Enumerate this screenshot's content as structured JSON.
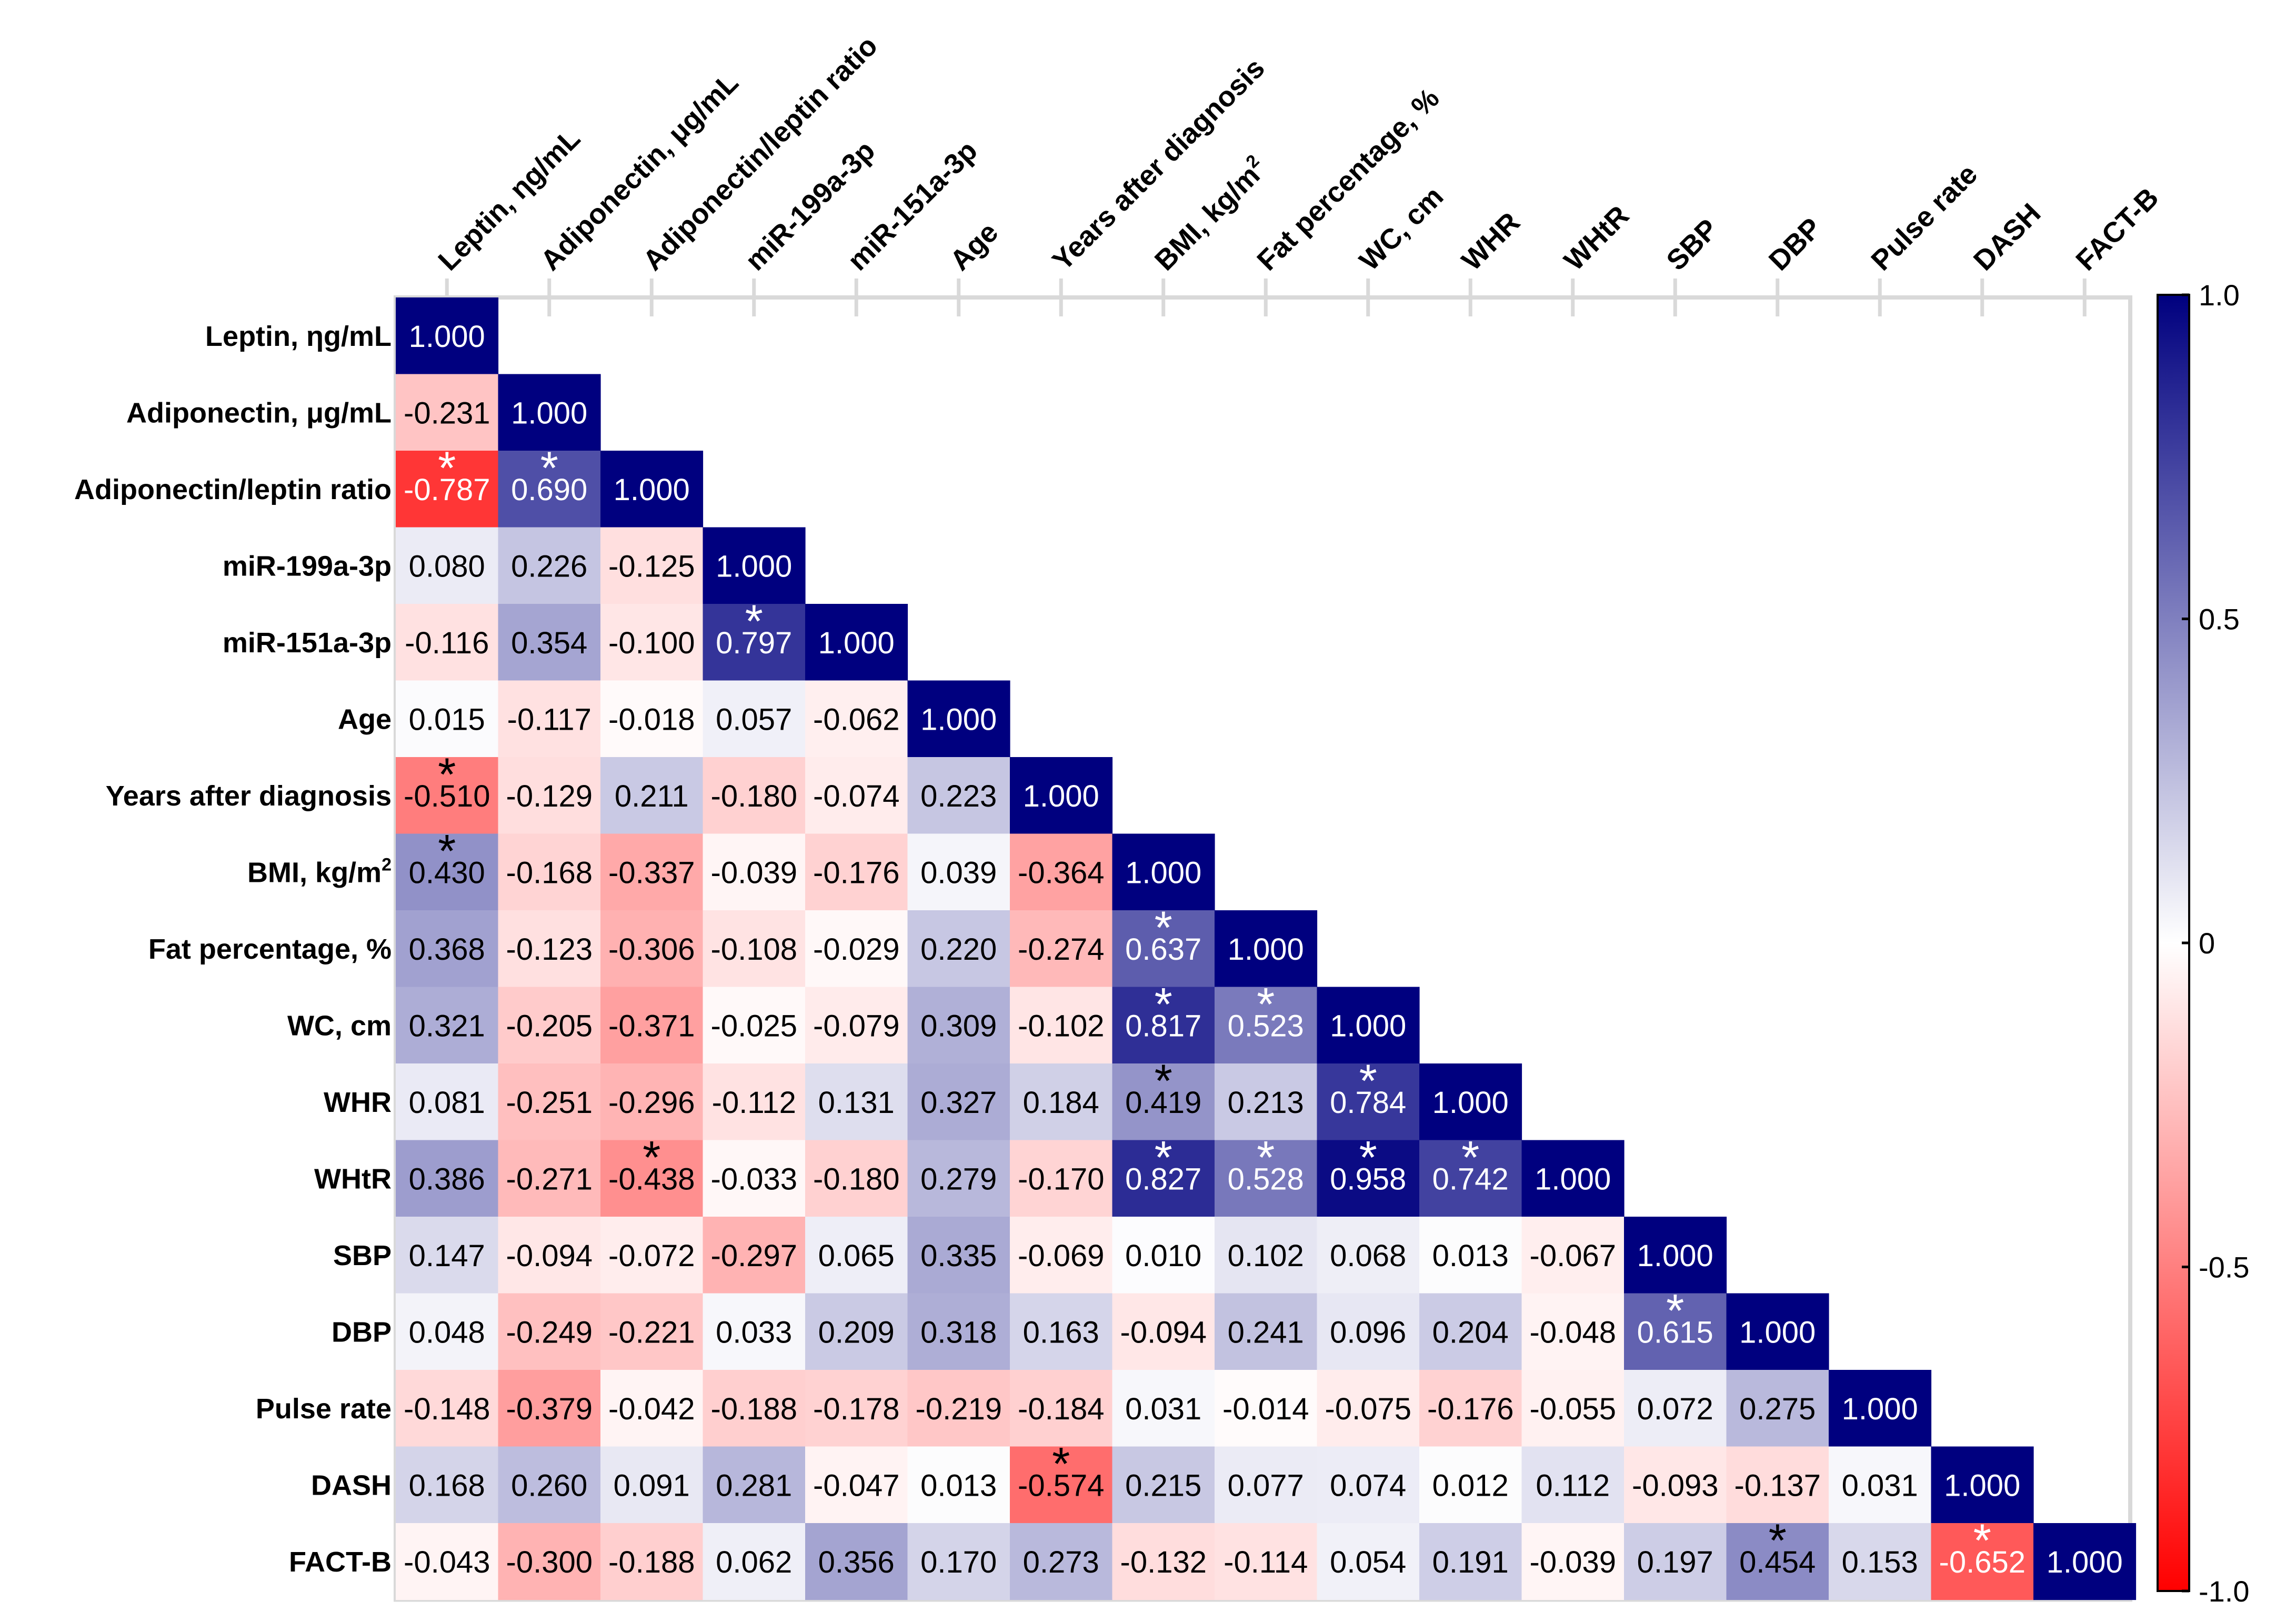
{
  "chart_data": {
    "type": "heatmap",
    "title": "",
    "variables": [
      {
        "label": "Leptin, ηg/mL"
      },
      {
        "label": "Adiponectin, μg/mL"
      },
      {
        "label": "Adiponectin/leptin ratio"
      },
      {
        "label": "miR-199a-3p"
      },
      {
        "label": "miR-151a-3p"
      },
      {
        "label": "Age"
      },
      {
        "label": "Years after diagnosis"
      },
      {
        "label": "BMI, kg/m",
        "sup": "2"
      },
      {
        "label": "Fat percentage, %"
      },
      {
        "label": "WC, cm"
      },
      {
        "label": "WHR"
      },
      {
        "label": "WHtR"
      },
      {
        "label": "SBP"
      },
      {
        "label": "DBP"
      },
      {
        "label": "Pulse rate"
      },
      {
        "label": "DASH"
      },
      {
        "label": "FACT-B"
      }
    ],
    "matrix": [
      [
        "1.000"
      ],
      [
        "-0.231",
        "1.000"
      ],
      [
        "-0.787",
        "0.690",
        "1.000"
      ],
      [
        "0.080",
        "0.226",
        "-0.125",
        "1.000"
      ],
      [
        "-0.116",
        "0.354",
        "-0.100",
        "0.797",
        "1.000"
      ],
      [
        "0.015",
        "-0.117",
        "-0.018",
        "0.057",
        "-0.062",
        "1.000"
      ],
      [
        "-0.510",
        "-0.129",
        "0.211",
        "-0.180",
        "-0.074",
        "0.223",
        "1.000"
      ],
      [
        "0.430",
        "-0.168",
        "-0.337",
        "-0.039",
        "-0.176",
        "0.039",
        "-0.364",
        "1.000"
      ],
      [
        "0.368",
        "-0.123",
        "-0.306",
        "-0.108",
        "-0.029",
        "0.220",
        "-0.274",
        "0.637",
        "1.000"
      ],
      [
        "0.321",
        "-0.205",
        "-0.371",
        "-0.025",
        "-0.079",
        "0.309",
        "-0.102",
        "0.817",
        "0.523",
        "1.000"
      ],
      [
        "0.081",
        "-0.251",
        "-0.296",
        "-0.112",
        "0.131",
        "0.327",
        "0.184",
        "0.419",
        "0.213",
        "0.784",
        "1.000"
      ],
      [
        "0.386",
        "-0.271",
        "-0.438",
        "-0.033",
        "-0.180",
        "0.279",
        "-0.170",
        "0.827",
        "0.528",
        "0.958",
        "0.742",
        "1.000"
      ],
      [
        "0.147",
        "-0.094",
        "-0.072",
        "-0.297",
        "0.065",
        "0.335",
        "-0.069",
        "0.010",
        "0.102",
        "0.068",
        "0.013",
        "-0.067",
        "1.000"
      ],
      [
        "0.048",
        "-0.249",
        "-0.221",
        "0.033",
        "0.209",
        "0.318",
        "0.163",
        "-0.094",
        "0.241",
        "0.096",
        "0.204",
        "-0.048",
        "0.615",
        "1.000"
      ],
      [
        "-0.148",
        "-0.379",
        "-0.042",
        "-0.188",
        "-0.178",
        "-0.219",
        "-0.184",
        "0.031",
        "-0.014",
        "-0.075",
        "-0.176",
        "-0.055",
        "0.072",
        "0.275",
        "1.000"
      ],
      [
        "0.168",
        "0.260",
        "0.091",
        "0.281",
        "-0.047",
        "0.013",
        "-0.574",
        "0.215",
        "0.077",
        "0.074",
        "0.012",
        "0.112",
        "-0.093",
        "-0.137",
        "0.031",
        "1.000"
      ],
      [
        "-0.043",
        "-0.300",
        "-0.188",
        "0.062",
        "0.356",
        "0.170",
        "0.273",
        "-0.132",
        "-0.114",
        "0.054",
        "0.191",
        "-0.039",
        "0.197",
        "0.454",
        "0.153",
        "-0.652",
        "1.000"
      ]
    ],
    "significant": [
      [
        2,
        0
      ],
      [
        2,
        1
      ],
      [
        4,
        3
      ],
      [
        6,
        0
      ],
      [
        7,
        0
      ],
      [
        8,
        7
      ],
      [
        9,
        7
      ],
      [
        9,
        8
      ],
      [
        10,
        7
      ],
      [
        10,
        9
      ],
      [
        11,
        2
      ],
      [
        11,
        7
      ],
      [
        11,
        8
      ],
      [
        11,
        9
      ],
      [
        11,
        10
      ],
      [
        13,
        12
      ],
      [
        15,
        6
      ],
      [
        16,
        13
      ],
      [
        16,
        15
      ]
    ],
    "significance_marker": "*",
    "colorbar": {
      "range": [
        -1.0,
        1.0
      ],
      "ticks": [
        "1.0",
        "0.5",
        "0",
        "-0.5",
        "-1.0"
      ],
      "colors": {
        "negative": "#ff0000",
        "zero": "#ffffff",
        "positive": "#00007f"
      }
    }
  }
}
